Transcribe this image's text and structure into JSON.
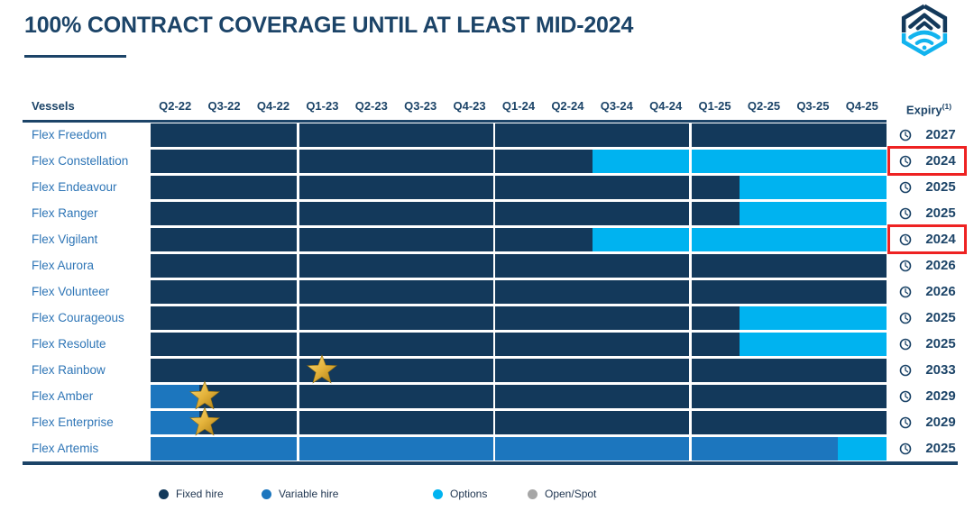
{
  "header": {
    "title": "100% CONTRACT COVERAGE UNTIL AT LEAST MID-2024",
    "logo": "flex-lng-logo"
  },
  "colors": {
    "fixed": "#13395B",
    "variable": "#1C76BE",
    "options": "#00B3F0",
    "open_spot": "#A6A6A6",
    "accent_red": "#EE2222",
    "text_navy": "#1C4468",
    "vessel_blue": "#2E75B6",
    "star_gold": "#D9A21E"
  },
  "chart_data": {
    "type": "gantt",
    "title": "100% CONTRACT COVERAGE UNTIL AT LEAST MID-2024",
    "columns_label": "Vessels",
    "expiry_label": "Expiry",
    "expiry_superscript": "(1)",
    "categories": [
      "Q2-22",
      "Q3-22",
      "Q4-22",
      "Q1-23",
      "Q2-23",
      "Q3-23",
      "Q4-23",
      "Q1-24",
      "Q2-24",
      "Q3-24",
      "Q4-24",
      "Q1-25",
      "Q2-25",
      "Q3-25",
      "Q4-25"
    ],
    "year_separators_at": [
      3,
      7,
      11
    ],
    "rows": [
      {
        "vessel": "Flex Freedom",
        "segments": [
          {
            "hire": "fixed",
            "start": 0,
            "end": 15
          }
        ],
        "stars": [],
        "expiry": "2027",
        "expiry_highlighted": false
      },
      {
        "vessel": "Flex Constellation",
        "segments": [
          {
            "hire": "fixed",
            "start": 0,
            "end": 9
          },
          {
            "hire": "options",
            "start": 9,
            "end": 15
          }
        ],
        "stars": [],
        "expiry": "2024",
        "expiry_highlighted": true
      },
      {
        "vessel": "Flex Endeavour",
        "segments": [
          {
            "hire": "fixed",
            "start": 0,
            "end": 12
          },
          {
            "hire": "options",
            "start": 12,
            "end": 15
          }
        ],
        "stars": [],
        "expiry": "2025",
        "expiry_highlighted": false
      },
      {
        "vessel": "Flex Ranger",
        "segments": [
          {
            "hire": "fixed",
            "start": 0,
            "end": 12
          },
          {
            "hire": "options",
            "start": 12,
            "end": 15
          }
        ],
        "stars": [],
        "expiry": "2025",
        "expiry_highlighted": false
      },
      {
        "vessel": "Flex Vigilant",
        "segments": [
          {
            "hire": "fixed",
            "start": 0,
            "end": 9
          },
          {
            "hire": "options",
            "start": 9,
            "end": 15
          }
        ],
        "stars": [],
        "expiry": "2024",
        "expiry_highlighted": true
      },
      {
        "vessel": "Flex Aurora",
        "segments": [
          {
            "hire": "fixed",
            "start": 0,
            "end": 15
          }
        ],
        "stars": [],
        "expiry": "2026",
        "expiry_highlighted": false
      },
      {
        "vessel": "Flex Volunteer",
        "segments": [
          {
            "hire": "fixed",
            "start": 0,
            "end": 15
          }
        ],
        "stars": [],
        "expiry": "2026",
        "expiry_highlighted": false
      },
      {
        "vessel": "Flex Courageous",
        "segments": [
          {
            "hire": "fixed",
            "start": 0,
            "end": 12
          },
          {
            "hire": "options",
            "start": 12,
            "end": 15
          }
        ],
        "stars": [],
        "expiry": "2025",
        "expiry_highlighted": false
      },
      {
        "vessel": "Flex Resolute",
        "segments": [
          {
            "hire": "fixed",
            "start": 0,
            "end": 12
          },
          {
            "hire": "options",
            "start": 12,
            "end": 15
          }
        ],
        "stars": [],
        "expiry": "2025",
        "expiry_highlighted": false
      },
      {
        "vessel": "Flex Rainbow",
        "segments": [
          {
            "hire": "fixed",
            "start": 0,
            "end": 15
          }
        ],
        "stars": [
          {
            "quarter_offset": 3.5
          }
        ],
        "expiry": "2033",
        "expiry_highlighted": false
      },
      {
        "vessel": "Flex Amber",
        "segments": [
          {
            "hire": "variable",
            "start": 0,
            "end": 1
          },
          {
            "hire": "fixed",
            "start": 1,
            "end": 15
          }
        ],
        "stars": [
          {
            "quarter_offset": 1.1
          }
        ],
        "expiry": "2029",
        "expiry_highlighted": false
      },
      {
        "vessel": "Flex Enterprise",
        "segments": [
          {
            "hire": "variable",
            "start": 0,
            "end": 1
          },
          {
            "hire": "fixed",
            "start": 1,
            "end": 15
          }
        ],
        "stars": [
          {
            "quarter_offset": 1.1
          }
        ],
        "expiry": "2029",
        "expiry_highlighted": false
      },
      {
        "vessel": "Flex Artemis",
        "segments": [
          {
            "hire": "variable",
            "start": 0,
            "end": 14
          },
          {
            "hire": "options",
            "start": 14,
            "end": 15
          }
        ],
        "stars": [],
        "expiry": "2025",
        "expiry_highlighted": false
      }
    ]
  },
  "legend": {
    "items": [
      {
        "label": "Fixed hire",
        "color_key": "fixed"
      },
      {
        "label": "Variable hire",
        "color_key": "variable"
      },
      {
        "label": "Options",
        "color_key": "options"
      },
      {
        "label": "Open/Spot",
        "color_key": "open_spot"
      }
    ]
  }
}
